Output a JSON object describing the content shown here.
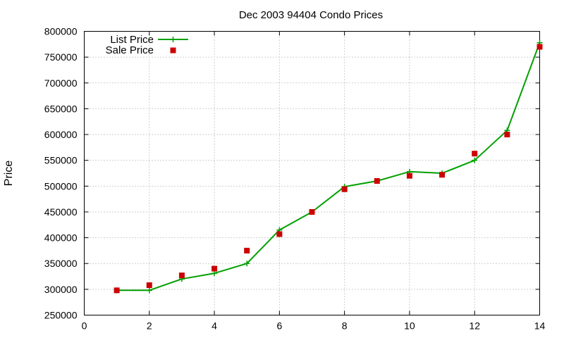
{
  "chart_data": {
    "type": "line",
    "title": "Dec 2003 94404 Condo Prices",
    "xlabel": "",
    "ylabel": "Price",
    "xlim": [
      0,
      14
    ],
    "ylim": [
      250000,
      800000
    ],
    "xticks": [
      0,
      2,
      4,
      6,
      8,
      10,
      12,
      14
    ],
    "yticks": [
      250000,
      300000,
      350000,
      400000,
      450000,
      500000,
      550000,
      600000,
      650000,
      700000,
      750000,
      800000
    ],
    "grid": true,
    "legend_position": "top-left",
    "series": [
      {
        "name": "List Price",
        "style": "line with plus markers",
        "color": "#00a000",
        "x": [
          1,
          2,
          3,
          4,
          5,
          6,
          7,
          8,
          9,
          10,
          11,
          12,
          13,
          14
        ],
        "y": [
          298000,
          298000,
          320000,
          331000,
          350000,
          415000,
          450000,
          499000,
          510000,
          528000,
          525000,
          550000,
          608000,
          778000
        ]
      },
      {
        "name": "Sale Price",
        "style": "square markers",
        "color": "#cc0000",
        "x": [
          1,
          2,
          3,
          4,
          5,
          6,
          7,
          8,
          9,
          10,
          11,
          12,
          13,
          14
        ],
        "y": [
          298000,
          308000,
          327000,
          340000,
          375000,
          407000,
          450000,
          494000,
          510000,
          520000,
          522000,
          563000,
          600000,
          770000
        ]
      }
    ]
  }
}
